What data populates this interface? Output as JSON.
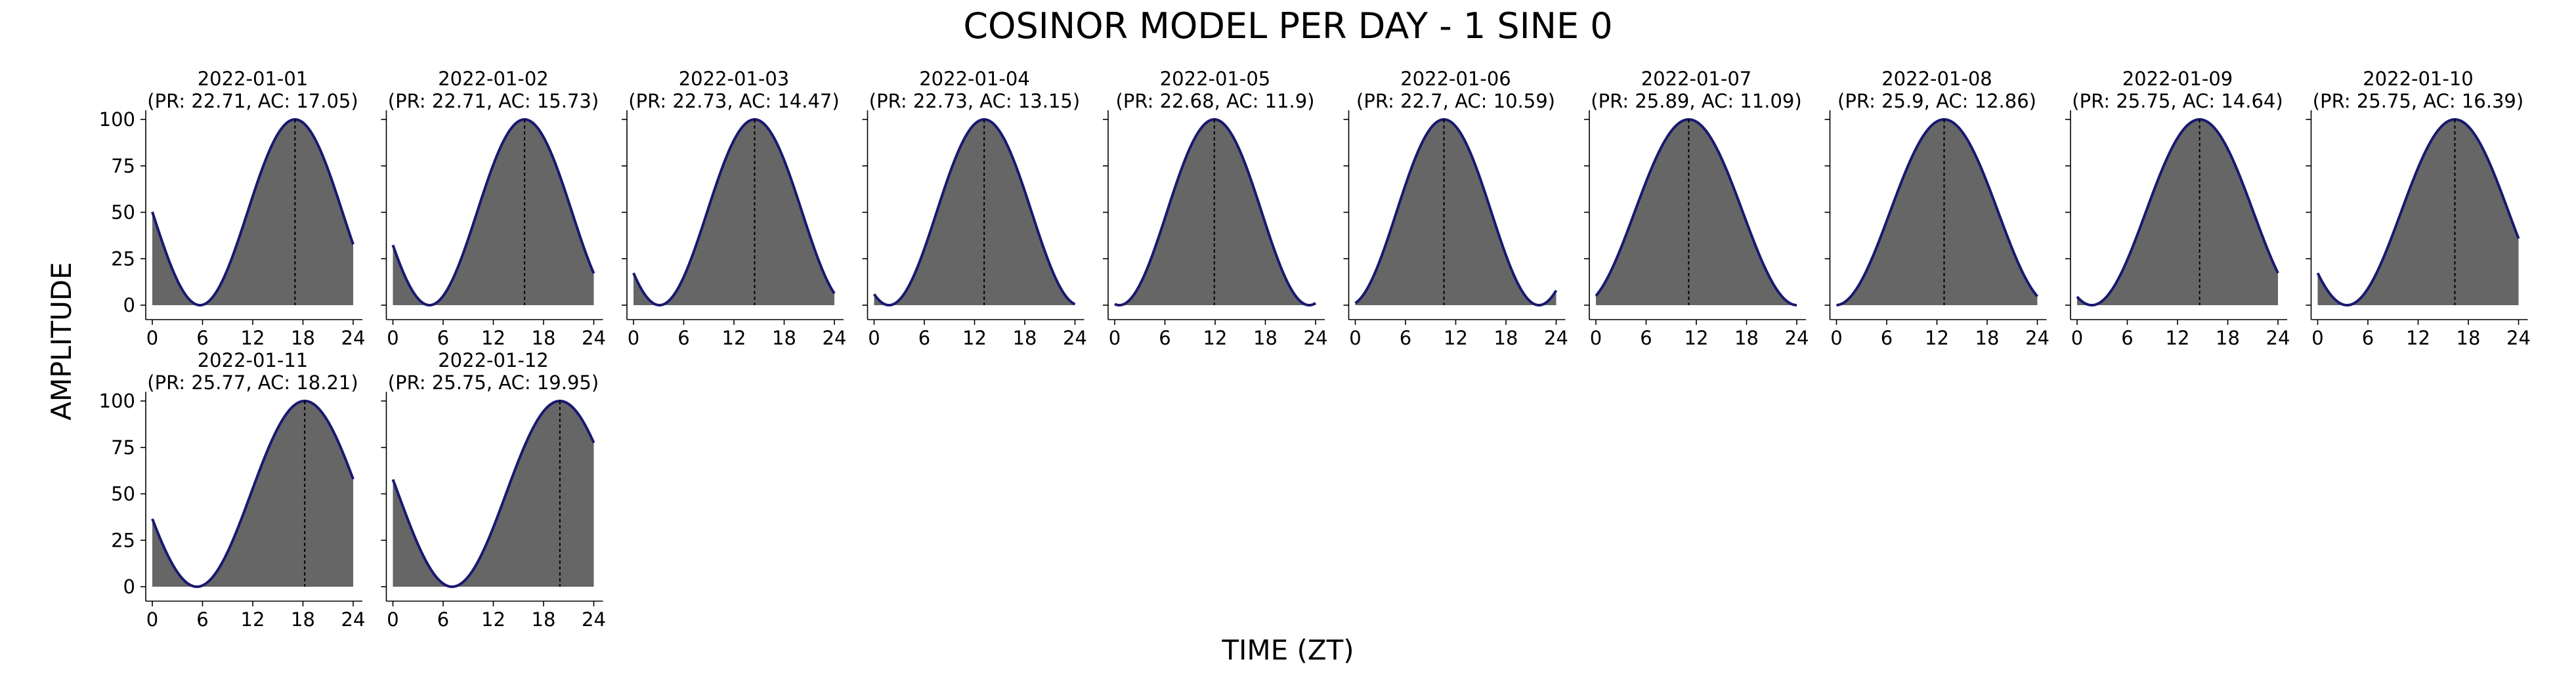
{
  "figure": {
    "title": "COSINOR MODEL PER DAY - 1 SINE 0",
    "xlabel": "TIME (ZT)",
    "ylabel": "AMPLITUDE"
  },
  "colors": {
    "fill": "#666666",
    "line": "#191970",
    "axis": "#000000",
    "acrophase_line": "#000000"
  },
  "chart_data": {
    "type": "area",
    "model": "cosinor single sine, amplitude 0 to 100",
    "xlim": [
      0,
      24
    ],
    "ylim": [
      0,
      100
    ],
    "xticks": [
      0,
      6,
      12,
      18,
      24
    ],
    "yticks": [
      0,
      25,
      50,
      75,
      100
    ],
    "grid": false,
    "x_range_shown": [
      0,
      24
    ],
    "panels": [
      {
        "date": "2022-01-01",
        "subtitle": "(PR: 22.71, AC: 17.05)",
        "period": 22.71,
        "acrophase": 17.05
      },
      {
        "date": "2022-01-02",
        "subtitle": "(PR: 22.71, AC: 15.73)",
        "period": 22.71,
        "acrophase": 15.73
      },
      {
        "date": "2022-01-03",
        "subtitle": "(PR: 22.73, AC: 14.47)",
        "period": 22.73,
        "acrophase": 14.47
      },
      {
        "date": "2022-01-04",
        "subtitle": "(PR: 22.73, AC: 13.15)",
        "period": 22.73,
        "acrophase": 13.15
      },
      {
        "date": "2022-01-05",
        "subtitle": "(PR: 22.68, AC: 11.9)",
        "period": 22.68,
        "acrophase": 11.9
      },
      {
        "date": "2022-01-06",
        "subtitle": "(PR: 22.7, AC: 10.59)",
        "period": 22.7,
        "acrophase": 10.59
      },
      {
        "date": "2022-01-07",
        "subtitle": "(PR: 25.89, AC: 11.09)",
        "period": 25.89,
        "acrophase": 11.09
      },
      {
        "date": "2022-01-08",
        "subtitle": "(PR: 25.9, AC: 12.86)",
        "period": 25.9,
        "acrophase": 12.86
      },
      {
        "date": "2022-01-09",
        "subtitle": "(PR: 25.75, AC: 14.64)",
        "period": 25.75,
        "acrophase": 14.64
      },
      {
        "date": "2022-01-10",
        "subtitle": "(PR: 25.75, AC: 16.39)",
        "period": 25.75,
        "acrophase": 16.39
      },
      {
        "date": "2022-01-11",
        "subtitle": "(PR: 25.77, AC: 18.21)",
        "period": 25.77,
        "acrophase": 18.21
      },
      {
        "date": "2022-01-12",
        "subtitle": "(PR: 25.75, AC: 19.95)",
        "period": 25.75,
        "acrophase": 19.95
      }
    ]
  }
}
